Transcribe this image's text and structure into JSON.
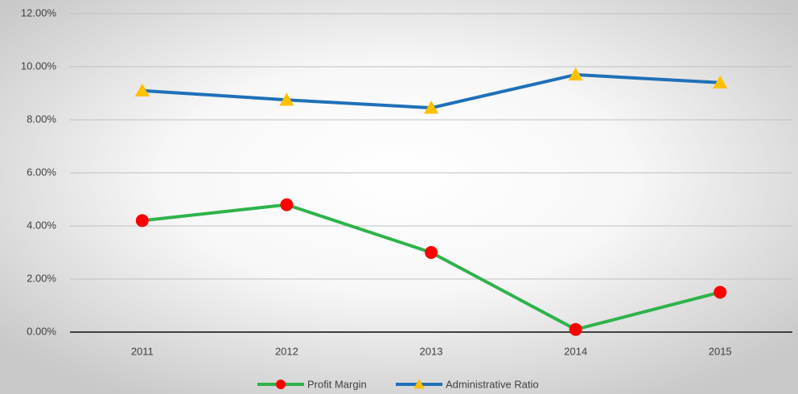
{
  "chart_data": {
    "type": "line",
    "categories": [
      "2011",
      "2012",
      "2013",
      "2014",
      "2015"
    ],
    "series": [
      {
        "name": "Profit Margin",
        "color": "#2eb34b",
        "marker": "circle",
        "marker_color": "#ff0000",
        "values": [
          4.2,
          4.8,
          3.0,
          0.1,
          1.5
        ]
      },
      {
        "name": "Administrative Ratio",
        "color": "#1f70b8",
        "marker": "triangle",
        "marker_color": "#ffc000",
        "values": [
          9.1,
          8.75,
          8.45,
          9.7,
          9.4
        ]
      }
    ],
    "ylim": [
      0,
      12
    ],
    "yticks": [
      {
        "value": 0,
        "label": "0.00%"
      },
      {
        "value": 2,
        "label": "2.00%"
      },
      {
        "value": 4,
        "label": "4.00%"
      },
      {
        "value": 6,
        "label": "6.00%"
      },
      {
        "value": 8,
        "label": "8.00%"
      },
      {
        "value": 10,
        "label": "10.00%"
      },
      {
        "value": 12,
        "label": "12.00%"
      }
    ],
    "grid": true,
    "legend": "bottom"
  }
}
